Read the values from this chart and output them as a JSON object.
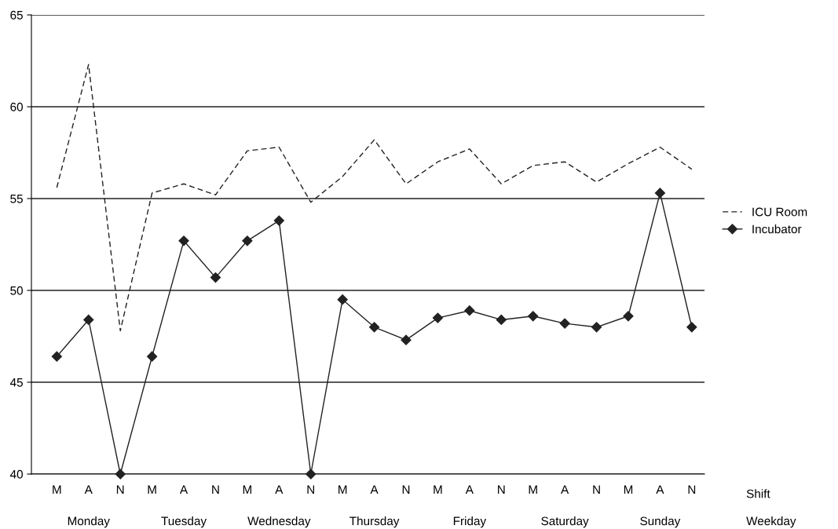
{
  "chart_data": {
    "type": "line",
    "categories": [
      "M",
      "A",
      "N",
      "M",
      "A",
      "N",
      "M",
      "A",
      "N",
      "M",
      "A",
      "N",
      "M",
      "A",
      "N",
      "M",
      "A",
      "N",
      "M",
      "A",
      "N"
    ],
    "annotations": [
      "Monday",
      "Tuesday",
      "Wednesday",
      "Thursday",
      "Friday",
      "Saturday",
      "Sunday",
      "Shift",
      "Weekday"
    ],
    "series": [
      {
        "name": "ICU Room",
        "color": "#222222",
        "line_style": "dashed",
        "marker": "none",
        "values": [
          55.6,
          62.3,
          47.8,
          55.3,
          55.8,
          55.2,
          57.6,
          57.8,
          54.8,
          56.2,
          58.2,
          55.8,
          57.0,
          57.7,
          55.8,
          56.8,
          57.0,
          55.9,
          56.9,
          57.8,
          56.6
        ]
      },
      {
        "name": "Incubator",
        "color": "#222222",
        "line_style": "solid",
        "marker": "diamond",
        "values": [
          46.4,
          48.4,
          40,
          46.4,
          52.7,
          50.7,
          52.7,
          53.8,
          40,
          49.5,
          48.0,
          47.3,
          48.5,
          48.9,
          48.4,
          48.6,
          48.2,
          48.0,
          48.6,
          55.3,
          48.0
        ]
      }
    ],
    "ylim": [
      40,
      65
    ],
    "yticks": [
      40,
      45,
      50,
      55,
      60,
      65
    ],
    "grid": "y",
    "legend": "right"
  }
}
